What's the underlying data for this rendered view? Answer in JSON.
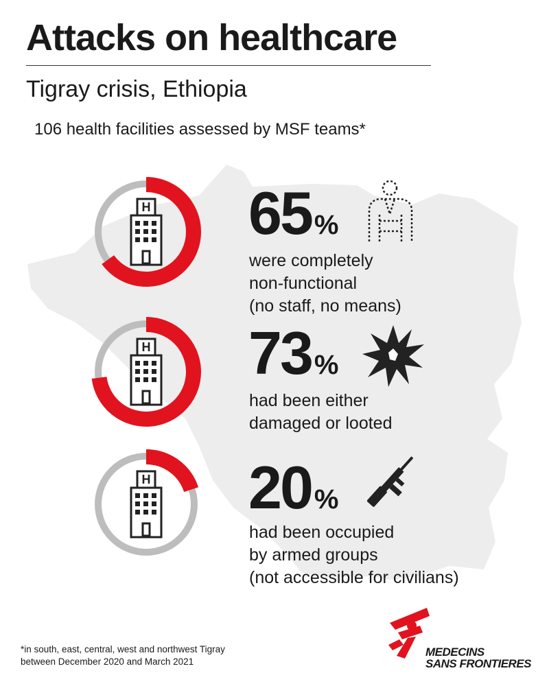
{
  "header": {
    "title": "Attacks on healthcare",
    "subtitle": "Tigray crisis, Ethiopia",
    "intro": "106 health facilities assessed by MSF teams*"
  },
  "colors": {
    "accent": "#e1131f",
    "track": "#bdbdbd",
    "map": "#ededed",
    "text": "#1a1a1a"
  },
  "chart_data": {
    "type": "pie",
    "total": 106,
    "items": [
      {
        "value": 65,
        "unit": "%",
        "lines": [
          "were completely",
          "non-functional",
          "(no staff, no means)"
        ],
        "icon": "person-outline-icon"
      },
      {
        "value": 73,
        "unit": "%",
        "lines": [
          "had been either",
          "damaged or looted"
        ],
        "icon": "explosion-icon"
      },
      {
        "value": 20,
        "unit": "%",
        "lines": [
          "had been occupied",
          "by armed groups",
          "(not accessible for civilians)"
        ],
        "icon": "rifle-icon"
      }
    ]
  },
  "footnote": {
    "lines": [
      "*in south, east, central, west and northwest Tigray",
      "between December 2020 and March 2021"
    ]
  },
  "logo": {
    "line1": "MEDECINS",
    "line2": "SANS FRONTIERES",
    "icon": "msf-runner-icon"
  }
}
